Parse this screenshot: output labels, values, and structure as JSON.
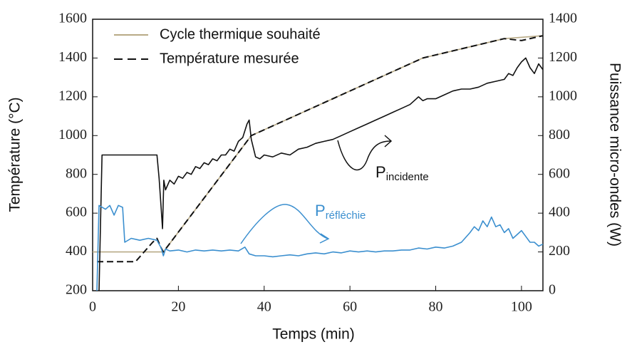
{
  "chart_data": {
    "type": "line",
    "xlabel": "Temps (min)",
    "ylabel": "Température (°C)",
    "y2label": "Puissance micro-ondes (W)",
    "xlim": [
      0,
      105
    ],
    "xticks": [
      0,
      20,
      40,
      60,
      80,
      100
    ],
    "ylim": [
      200,
      1600
    ],
    "yticks": [
      200,
      400,
      600,
      800,
      1000,
      1200,
      1400,
      1600
    ],
    "y2lim": [
      0,
      1400
    ],
    "y2ticks": [
      0,
      200,
      400,
      600,
      800,
      1000,
      1200,
      1400
    ],
    "legend": "upper left",
    "series": [
      {
        "name": "Cycle thermique souhaité",
        "color": "#b8aa86",
        "linestyle": "solid",
        "x": [
          0,
          16.5,
          37,
          77,
          96,
          105
        ],
        "values": [
          400,
          400,
          1000,
          1400,
          1500,
          1515
        ]
      },
      {
        "name": "Température mesurée",
        "color": "#111111",
        "linestyle": "dashed",
        "x": [
          1,
          10,
          14,
          15,
          16,
          16.5,
          37,
          77,
          96,
          100,
          105
        ],
        "values": [
          350,
          350,
          450,
          470,
          420,
          400,
          1000,
          1400,
          1500,
          1490,
          1515
        ]
      },
      {
        "color": "#111111",
        "linestyle": "solid",
        "axis": "y2",
        "x": [
          1.5,
          2.2,
          15,
          15.5,
          16,
          16.3,
          16.6,
          17,
          18,
          19,
          20,
          21,
          22,
          23,
          24,
          25,
          26,
          27,
          28,
          29,
          30,
          31,
          32,
          33,
          34,
          35,
          36,
          36.5,
          37,
          38,
          39,
          40,
          42,
          44,
          46,
          48,
          50,
          52,
          54,
          56,
          58,
          60,
          62,
          64,
          66,
          68,
          70,
          72,
          74,
          75,
          76,
          77,
          78,
          80,
          82,
          84,
          86,
          88,
          90,
          92,
          94,
          96,
          97,
          98,
          99,
          100,
          101,
          102,
          103,
          104,
          105
        ],
        "values": [
          0,
          700,
          700,
          580,
          420,
          320,
          570,
          520,
          570,
          550,
          590,
          580,
          610,
          600,
          640,
          630,
          660,
          650,
          680,
          670,
          700,
          700,
          730,
          720,
          770,
          790,
          860,
          880,
          780,
          690,
          680,
          700,
          690,
          710,
          700,
          730,
          740,
          760,
          770,
          780,
          800,
          820,
          840,
          860,
          880,
          900,
          920,
          940,
          960,
          980,
          1000,
          980,
          990,
          990,
          1010,
          1030,
          1040,
          1040,
          1050,
          1070,
          1080,
          1090,
          1120,
          1110,
          1150,
          1180,
          1200,
          1150,
          1120,
          1170,
          1140
        ]
      },
      {
        "color": "#3b8fcf",
        "linestyle": "solid",
        "axis": "y2",
        "x": [
          1,
          1.5,
          3,
          4,
          5,
          6,
          7,
          7.5,
          9,
          11,
          13,
          15,
          16,
          16.5,
          17,
          18,
          20,
          22,
          24,
          26,
          28,
          30,
          32,
          34,
          35.5,
          36.5,
          38,
          40,
          42,
          44,
          46,
          48,
          50,
          52,
          54,
          56,
          58,
          60,
          62,
          64,
          66,
          68,
          70,
          72,
          74,
          76,
          78,
          80,
          82,
          84,
          86,
          88,
          89,
          90,
          91,
          92,
          93,
          94,
          95,
          96,
          97,
          98,
          99,
          100,
          101,
          102,
          103,
          104,
          105
        ],
        "values": [
          0,
          440,
          420,
          440,
          390,
          440,
          430,
          250,
          270,
          260,
          270,
          260,
          220,
          180,
          215,
          205,
          210,
          200,
          210,
          205,
          210,
          205,
          210,
          205,
          225,
          190,
          180,
          180,
          175,
          180,
          185,
          180,
          190,
          195,
          190,
          200,
          195,
          205,
          200,
          205,
          200,
          205,
          205,
          210,
          210,
          220,
          215,
          225,
          220,
          230,
          250,
          300,
          330,
          310,
          360,
          330,
          380,
          330,
          340,
          300,
          320,
          270,
          290,
          310,
          280,
          250,
          250,
          230,
          240
        ]
      }
    ],
    "annotations": [
      {
        "text": "P",
        "subscript": "incidente"
      },
      {
        "text": "P",
        "subscript": "réfléchie"
      }
    ]
  }
}
